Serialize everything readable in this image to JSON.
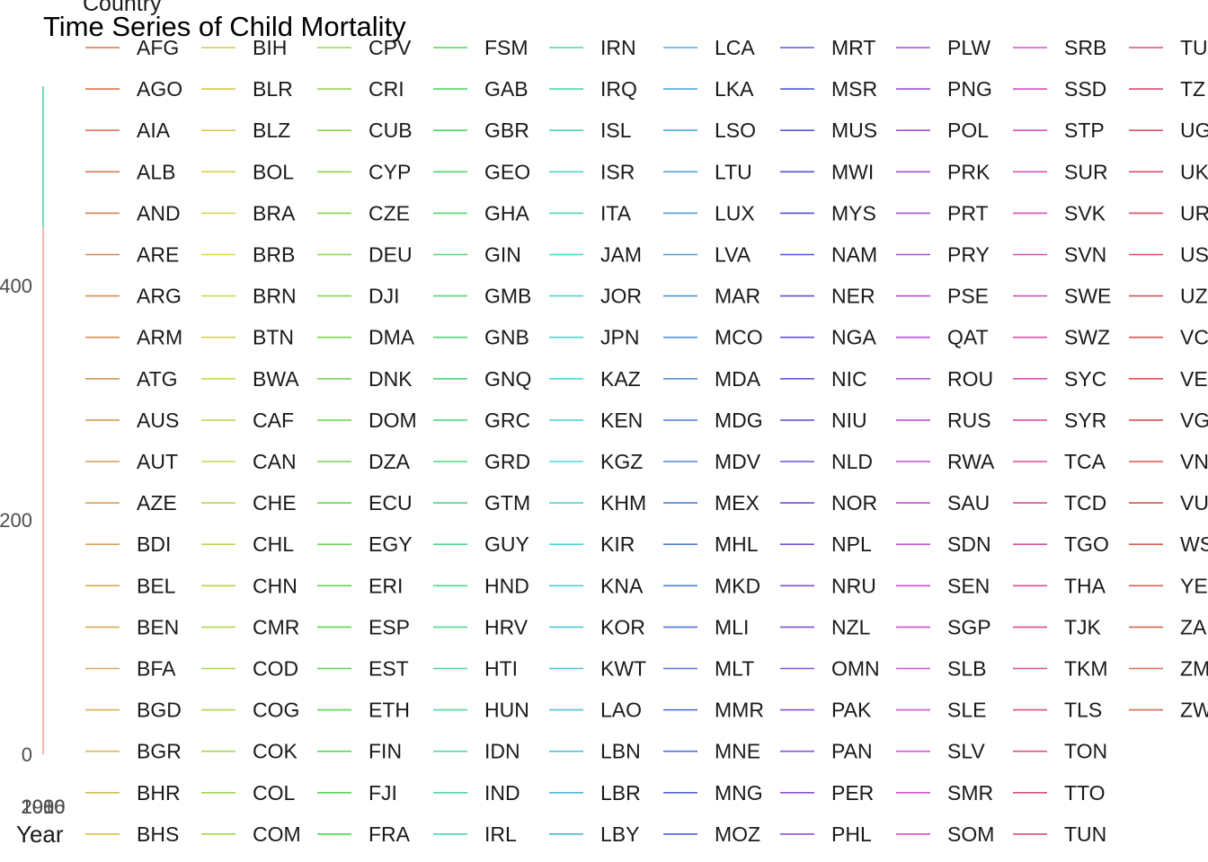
{
  "chart_data": {
    "type": "line",
    "title": "Time Series of Child Mortality",
    "xlabel": "Year",
    "ylabel": "",
    "y_ticks": [
      0,
      200,
      400
    ],
    "ylim": [
      0,
      600
    ],
    "x_tick_labels_overlapping": [
      "1980",
      "2000",
      "2016"
    ],
    "legend": {
      "title": "Country",
      "placement": "right",
      "entries": [
        "AFG",
        "AGO",
        "AIA",
        "ALB",
        "AND",
        "ARE",
        "ARG",
        "ARM",
        "ATG",
        "AUS",
        "AUT",
        "AZE",
        "BDI",
        "BEL",
        "BEN",
        "BFA",
        "BGD",
        "BGR",
        "BHR",
        "BHS",
        "BIH",
        "BLR",
        "BLZ",
        "BOL",
        "BRA",
        "BRB",
        "BRN",
        "BTN",
        "BWA",
        "CAF",
        "CAN",
        "CHE",
        "CHL",
        "CHN",
        "CMR",
        "COD",
        "COG",
        "COK",
        "COL",
        "COM",
        "CPV",
        "CRI",
        "CUB",
        "CYP",
        "CZE",
        "DEU",
        "DJI",
        "DMA",
        "DNK",
        "DOM",
        "DZA",
        "ECU",
        "EGY",
        "ERI",
        "ESP",
        "EST",
        "ETH",
        "FIN",
        "FJI",
        "FRA",
        "FSM",
        "GAB",
        "GBR",
        "GEO",
        "GHA",
        "GIN",
        "GMB",
        "GNB",
        "GNQ",
        "GRC",
        "GRD",
        "GTM",
        "GUY",
        "HND",
        "HRV",
        "HTI",
        "HUN",
        "IDN",
        "IND",
        "IRL",
        "IRN",
        "IRQ",
        "ISL",
        "ISR",
        "ITA",
        "JAM",
        "JOR",
        "JPN",
        "KAZ",
        "KEN",
        "KGZ",
        "KHM",
        "KIR",
        "KNA",
        "KOR",
        "KWT",
        "LAO",
        "LBN",
        "LBR",
        "LBY",
        "LCA",
        "LKA",
        "LSO",
        "LTU",
        "LUX",
        "LVA",
        "MAR",
        "MCO",
        "MDA",
        "MDG",
        "MDV",
        "MEX",
        "MHL",
        "MKD",
        "MLI",
        "MLT",
        "MMR",
        "MNE",
        "MNG",
        "MOZ",
        "MRT",
        "MSR",
        "MUS",
        "MWI",
        "MYS",
        "NAM",
        "NER",
        "NGA",
        "NIC",
        "NIU",
        "NLD",
        "NOR",
        "NPL",
        "NRU",
        "NZL",
        "OMN",
        "PAK",
        "PAN",
        "PER",
        "PHL",
        "PLW",
        "PNG",
        "POL",
        "PRK",
        "PRT",
        "PRY",
        "PSE",
        "QAT",
        "ROU",
        "RUS",
        "RWA",
        "SAU",
        "SDN",
        "SEN",
        "SGP",
        "SLB",
        "SLE",
        "SLV",
        "SMR",
        "SOM",
        "SRB",
        "SSD",
        "STP",
        "SUR",
        "SVK",
        "SVN",
        "SWE",
        "SWZ",
        "SYC",
        "SYR",
        "TCA",
        "TCD",
        "TGO",
        "THA",
        "TJK",
        "TKM",
        "TLS",
        "TON",
        "TTO",
        "TUN",
        "TUV",
        "TZA",
        "UGA",
        "UKR",
        "URY",
        "USA",
        "UZB",
        "VCT",
        "VEN",
        "VGB",
        "VNM",
        "VUT",
        "WSM",
        "YEM",
        "ZAF",
        "ZMB",
        "ZWE"
      ],
      "visible_labels": [
        "AFG",
        "AGO",
        "AIA",
        "ALB",
        "AND",
        "ARE",
        "ARG",
        "ARM",
        "ATG",
        "AUS",
        "AUT",
        "AZE",
        "BDI",
        "BEL",
        "BEN",
        "BFA",
        "BGD",
        "BGR",
        "BHR",
        "BHS",
        "BIH",
        "BLR",
        "BLZ",
        "BOL",
        "BRA",
        "BRB",
        "BRN",
        "BTN",
        "BWA",
        "CAF",
        "CAN",
        "CHE",
        "CHL",
        "CHN",
        "CMR",
        "COD",
        "COG",
        "COK",
        "COL",
        "COM",
        "CPV",
        "CRI",
        "CUB",
        "CYP",
        "CZE",
        "DEU",
        "DJI",
        "DMA",
        "DNK",
        "DOM",
        "DZA",
        "ECU",
        "EGY",
        "ERI",
        "ESP",
        "EST",
        "ETH",
        "FIN",
        "FJI",
        "FRA",
        "FSM",
        "GAB",
        "GBR",
        "GEO",
        "GHA",
        "GIN",
        "GMB",
        "GNB",
        "GNQ",
        "GRC",
        "GRD",
        "GTM",
        "GUY",
        "HND",
        "HRV",
        "HTI",
        "HUN",
        "IDN",
        "IND",
        "IRL",
        "IRN",
        "IRQ",
        "ISL",
        "ISR",
        "ITA",
        "JAM",
        "JOR",
        "JPN",
        "KAZ",
        "KEN",
        "KGZ",
        "KHM",
        "KIR",
        "KNA",
        "KOR",
        "KWT",
        "LAO",
        "LBN",
        "LBR",
        "LBY",
        "LCA",
        "LKA",
        "LSO",
        "LTU",
        "LUX",
        "LVA",
        "MAR",
        "MCO",
        "MDA",
        "MDG",
        "MDV",
        "MEX",
        "MHL",
        "MKD",
        "MLI",
        "MLT",
        "MMR",
        "MNE",
        "MNG",
        "MOZ",
        "MRT",
        "MSR",
        "MUS",
        "MWI",
        "MYS",
        "NAM",
        "NER",
        "NGA",
        "NIC",
        "NIU",
        "NLD",
        "NOR",
        "NPL",
        "NRU",
        "NZL",
        "OMN",
        "PAK",
        "PAN",
        "PER",
        "PHL",
        "PLW",
        "PNG",
        "POL",
        "PRK",
        "PRT",
        "PRY",
        "PSE",
        "QAT",
        "ROU",
        "RUS",
        "RWA",
        "SAU",
        "SDN",
        "SEN",
        "SGP",
        "SLB",
        "SLE",
        "SLV",
        "SMR",
        "SOM",
        "SRB",
        "SSD",
        "STP",
        "SUR",
        "SVK",
        "SVN",
        "SWE",
        "SWZ",
        "SYC",
        "SYR",
        "TCA",
        "TCD",
        "TGO",
        "THA",
        "TJK",
        "TKM",
        "TLS",
        "TON",
        "TTO",
        "TUN",
        "TU",
        "TZ",
        "UG",
        "UK",
        "UR",
        "US",
        "UZ",
        "VC",
        "VE",
        "VG",
        "VN",
        "VU",
        "WS",
        "YE",
        "ZA",
        "ZM",
        "ZW"
      ]
    },
    "visible_series": [
      {
        "name": "AFG",
        "color": "#F8766D",
        "values": [
          0,
          450
        ]
      },
      {
        "name": "IRL",
        "color": "#00BF7D",
        "values": [
          450,
          570
        ]
      }
    ]
  }
}
